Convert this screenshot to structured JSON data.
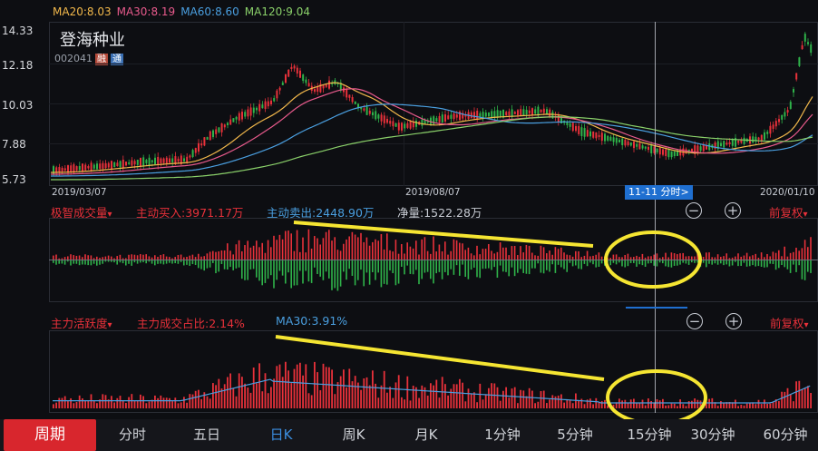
{
  "ma_legend": {
    "ma20": "MA20:8.03",
    "ma30": "MA30:8.19",
    "ma60": "MA60:8.60",
    "ma120": "MA120:9.04",
    "colors": {
      "ma20": "#f2b84b",
      "ma30": "#e85a8c",
      "ma60": "#4a9fe0",
      "ma120": "#8ad06a"
    }
  },
  "stock": {
    "name": "登海种业",
    "code": "002041",
    "badge_rong": "融",
    "badge_tong": "通"
  },
  "price_axis": [
    "14.33",
    "12.18",
    "10.03",
    "7.88",
    "5.73"
  ],
  "dates": {
    "start": "2019/03/07",
    "mid": "2019/08/07",
    "end": "2020/01/10"
  },
  "crosshair_tip": "11-11 分时>",
  "volume_panel": {
    "indicator": "极智成交量",
    "dropdown": "▾",
    "buy": "主动买入:3971.17万",
    "sell": "主动卖出:2448.90万",
    "net": "净量:1522.28万",
    "minus": "−",
    "plus": "+",
    "adjust": "前复权",
    "adjust_arrow": "▾"
  },
  "activity_panel": {
    "indicator": "主力活跃度",
    "dropdown": "▾",
    "ratio": "主力成交占比:2.14%",
    "ma30": "MA30:3.91%",
    "minus": "−",
    "plus": "+",
    "adjust": "前复权",
    "adjust_arrow": "▾"
  },
  "tabs": {
    "period": "周期",
    "items": [
      "分时",
      "五日",
      "日K",
      "周K",
      "月K",
      "1分钟",
      "5分钟",
      "15分钟",
      "30分钟",
      "60分钟"
    ],
    "selected": "日K"
  },
  "colors": {
    "up": "#e8313a",
    "down": "#2fb34a",
    "annotation": "#f5e532",
    "accent": "#1f6fd0"
  }
}
